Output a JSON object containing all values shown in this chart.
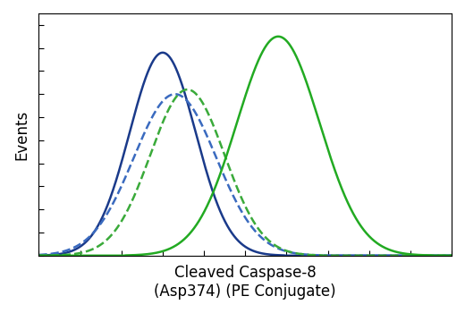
{
  "title": "",
  "xlabel": "Cleaved Caspase-8\n(Asp374) (PE Conjugate)",
  "ylabel": "Events",
  "background_color": "#ffffff",
  "plot_bg_color": "#ffffff",
  "curves": [
    {
      "label": "blue_solid",
      "color": "#1a3a8a",
      "linestyle": "solid",
      "linewidth": 1.8,
      "mu": 0.3,
      "sigma": 0.08,
      "peak": 0.88
    },
    {
      "label": "blue_dashed",
      "color": "#3a6abf",
      "linestyle": "dashed",
      "linewidth": 1.8,
      "mu": 0.33,
      "sigma": 0.1,
      "peak": 0.7
    },
    {
      "label": "green_dashed",
      "color": "#3aaa3a",
      "linestyle": "dashed",
      "linewidth": 1.8,
      "mu": 0.36,
      "sigma": 0.09,
      "peak": 0.72
    },
    {
      "label": "green_solid",
      "color": "#22aa22",
      "linestyle": "solid",
      "linewidth": 1.8,
      "mu": 0.58,
      "sigma": 0.1,
      "peak": 0.95
    }
  ],
  "xlim": [
    0.0,
    1.0
  ],
  "ylim": [
    0.0,
    1.05
  ],
  "xlabel_fontsize": 12,
  "ylabel_fontsize": 12
}
